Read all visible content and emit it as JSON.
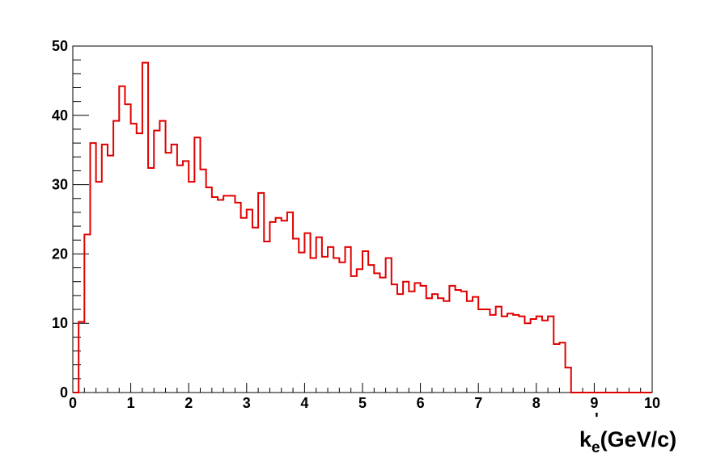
{
  "chart_data": {
    "type": "histogram",
    "title": "",
    "xlabel": {
      "main": "k",
      "superscript": "'",
      "subscript": "e",
      "rest": "(GeV/c)"
    },
    "ylabel": "",
    "xlim": [
      0,
      10
    ],
    "ylim": [
      0,
      50
    ],
    "x_ticks": [
      "0",
      "1",
      "2",
      "3",
      "4",
      "5",
      "6",
      "7",
      "8",
      "9",
      "10"
    ],
    "y_ticks": [
      "0",
      "10",
      "20",
      "30",
      "40",
      "50"
    ],
    "grid": false,
    "legend": "none",
    "line_color": "#e00000",
    "bin_width": 0.1,
    "bin_start": 0.0,
    "values": [
      0,
      10.2,
      22.8,
      36,
      30.4,
      35.8,
      34.2,
      39.2,
      44.2,
      41.6,
      38.8,
      37.4,
      47.6,
      32.4,
      37.8,
      39.2,
      34.6,
      35.8,
      32.8,
      33.4,
      30.4,
      36.8,
      32.2,
      29.6,
      28.2,
      27.8,
      28.4,
      28.4,
      27.4,
      25.2,
      26.4,
      23.8,
      28.8,
      21.8,
      24.6,
      25.2,
      24.8,
      26.0,
      22.2,
      20.2,
      23.0,
      19.4,
      22.4,
      19.6,
      21.0,
      19.4,
      18.8,
      21.0,
      16.8,
      17.8,
      20.4,
      18.4,
      17.2,
      16.6,
      19.4,
      15.6,
      14.2,
      16.0,
      14.6,
      15.8,
      15.4,
      13.6,
      14.2,
      13.6,
      13.2,
      15.4,
      14.8,
      14.6,
      13.2,
      13.8,
      12.0,
      12.0,
      11.2,
      12.4,
      11.0,
      11.4,
      11.2,
      11.0,
      10.0,
      10.6,
      11.0,
      10.4,
      11.0,
      7.0,
      7.2,
      3.6,
      0,
      0,
      0,
      0,
      0,
      0,
      0,
      0,
      0,
      0,
      0,
      0,
      0,
      0
    ]
  }
}
